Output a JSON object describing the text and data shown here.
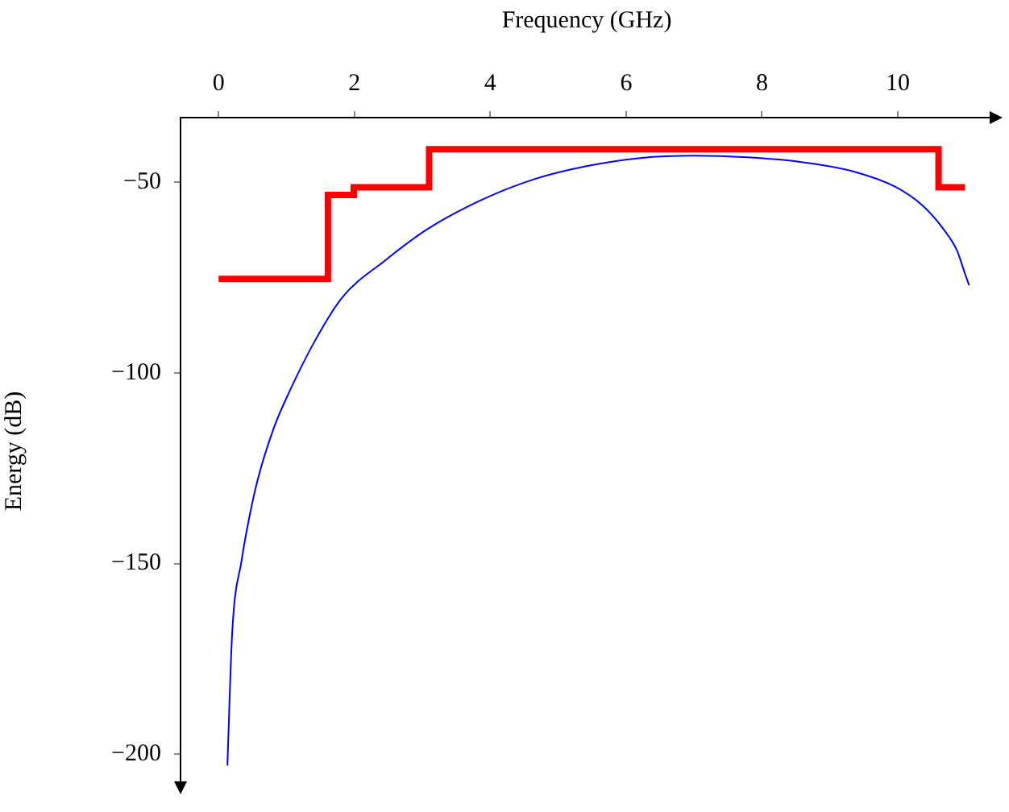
{
  "chart_data": {
    "type": "line",
    "xlabel": "Frequency (GHz)",
    "ylabel": "Energy (dB)",
    "xlim": [
      -0.56,
      11.4
    ],
    "xticks": [
      0,
      2,
      4,
      6,
      8,
      10
    ],
    "ylim": [
      -208,
      -33
    ],
    "yticks": [
      -50,
      -100,
      -150,
      -200
    ],
    "grid": false,
    "legend": false,
    "marker": "none",
    "line_style": "solid",
    "series": [
      {
        "type": "step",
        "color": "#ff0000",
        "x": [
          0,
          1.61,
          1.99,
          3.1,
          10.6,
          10.99
        ],
        "values": [
          -75.3,
          -53.3,
          -51.3,
          -41.3,
          -51.3,
          -51.3
        ]
      },
      {
        "type": "line",
        "color": "#0000ff",
        "x": [
          0.13,
          0.2,
          0.34,
          0.45,
          0.57,
          0.81,
          1.04,
          1.43,
          1.82,
          2.45,
          3.08,
          3.86,
          4.64,
          5.43,
          6.21,
          6.99,
          7.78,
          8.56,
          9.34,
          9.97,
          10.36,
          10.67,
          10.87,
          10.99,
          11.05
        ],
        "values": [
          -203,
          -168.4,
          -149.1,
          -138.1,
          -128.4,
          -114.6,
          -105,
          -91.2,
          -80.2,
          -70.5,
          -62.2,
          -54.7,
          -49.2,
          -45.7,
          -43.6,
          -43,
          -43.4,
          -44.6,
          -47.1,
          -51.2,
          -56,
          -62.2,
          -67.8,
          -74,
          -77
        ]
      }
    ]
  }
}
